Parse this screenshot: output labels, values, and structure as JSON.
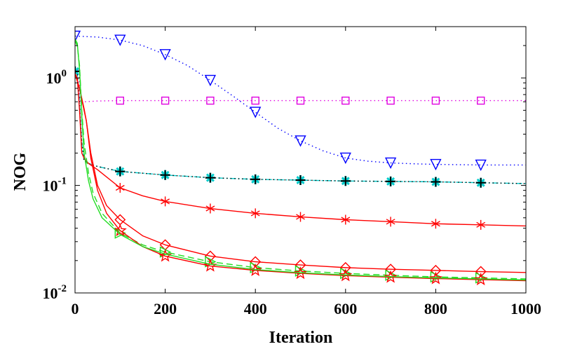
{
  "chart_data": {
    "type": "line",
    "title": "",
    "xlabel": "Iteration",
    "ylabel": "NOG",
    "xscale": "linear",
    "yscale": "log",
    "xlim": [
      0,
      1000
    ],
    "ylim": [
      0.01,
      3
    ],
    "grid": false,
    "legend": "none",
    "xticks": [
      0,
      200,
      400,
      600,
      800,
      1000
    ],
    "xtick_labels": [
      "0",
      "200",
      "400",
      "600",
      "800",
      "1000"
    ],
    "yticks": [
      0.01,
      0.1,
      1
    ],
    "ytick_labels": [
      {
        "base": "10",
        "exp": "-2"
      },
      {
        "base": "10",
        "exp": "-1"
      },
      {
        "base": "10",
        "exp": "0"
      }
    ],
    "series": [
      {
        "name": "blue-triangle-down",
        "color": "#0000ff",
        "dash": "dotted",
        "marker": "triangle-down",
        "x": [
          0,
          50,
          100,
          150,
          200,
          250,
          300,
          350,
          400,
          450,
          500,
          550,
          600,
          650,
          700,
          750,
          800,
          850,
          900,
          950,
          1000
        ],
        "y": [
          2.45,
          2.4,
          2.25,
          2.0,
          1.65,
          1.3,
          0.95,
          0.68,
          0.48,
          0.34,
          0.26,
          0.21,
          0.18,
          0.168,
          0.162,
          0.159,
          0.157,
          0.156,
          0.155,
          0.155,
          0.155
        ],
        "marker_x": [
          0,
          100,
          200,
          300,
          400,
          500,
          600,
          700,
          800,
          900
        ]
      },
      {
        "name": "magenta-square",
        "color": "#e000e0",
        "dash": "dotted",
        "marker": "square",
        "x": [
          0,
          8,
          12,
          20,
          50,
          100,
          200,
          300,
          400,
          500,
          600,
          700,
          800,
          900,
          1000
        ],
        "y": [
          1.2,
          1.2,
          0.58,
          0.6,
          0.61,
          0.615,
          0.615,
          0.615,
          0.615,
          0.615,
          0.615,
          0.615,
          0.615,
          0.615,
          0.615
        ],
        "marker_x": [
          100,
          200,
          300,
          400,
          500,
          600,
          700,
          800,
          900
        ]
      },
      {
        "name": "cyan-asterisk",
        "color": "#00cccc",
        "dash": "dashdot",
        "marker": "asterisk",
        "x": [
          0,
          5,
          10,
          15,
          20,
          30,
          50,
          100,
          200,
          300,
          400,
          500,
          600,
          700,
          800,
          900,
          1000
        ],
        "y": [
          1.15,
          1.1,
          0.6,
          0.25,
          0.17,
          0.16,
          0.15,
          0.135,
          0.125,
          0.118,
          0.114,
          0.112,
          0.11,
          0.109,
          0.108,
          0.106,
          0.104
        ],
        "marker_x": [
          0,
          100,
          200,
          300,
          400,
          500,
          600,
          700,
          800,
          900
        ]
      },
      {
        "name": "black-plus",
        "color": "#000000",
        "dash": "dotted",
        "marker": "plus",
        "x": [
          0,
          5,
          10,
          15,
          20,
          30,
          50,
          100,
          200,
          300,
          400,
          500,
          600,
          700,
          800,
          900,
          1000
        ],
        "y": [
          1.15,
          1.1,
          0.6,
          0.25,
          0.17,
          0.16,
          0.15,
          0.135,
          0.125,
          0.118,
          0.114,
          0.112,
          0.11,
          0.109,
          0.108,
          0.106,
          0.104
        ],
        "marker_x": [
          0,
          100,
          200,
          300,
          400,
          500,
          600,
          700,
          800,
          900
        ]
      },
      {
        "name": "red-star",
        "color": "#ff0000",
        "dash": "solid",
        "marker": "star",
        "x": [
          0,
          5,
          10,
          15,
          20,
          30,
          50,
          100,
          150,
          200,
          300,
          400,
          500,
          600,
          700,
          800,
          900,
          1000
        ],
        "y": [
          1.1,
          1.0,
          0.5,
          0.2,
          0.18,
          0.16,
          0.14,
          0.095,
          0.08,
          0.071,
          0.061,
          0.055,
          0.051,
          0.048,
          0.046,
          0.044,
          0.043,
          0.042
        ],
        "marker_x": [
          100,
          200,
          300,
          400,
          500,
          600,
          700,
          800,
          900
        ]
      },
      {
        "name": "red-diamond",
        "color": "#ff0000",
        "dash": "solid",
        "marker": "diamond",
        "x": [
          0,
          10,
          20,
          25,
          35,
          50,
          70,
          100,
          150,
          200,
          300,
          400,
          500,
          600,
          700,
          800,
          900,
          1000
        ],
        "y": [
          1.1,
          0.8,
          0.52,
          0.4,
          0.2,
          0.1,
          0.065,
          0.048,
          0.034,
          0.028,
          0.022,
          0.0195,
          0.0182,
          0.0172,
          0.0166,
          0.0162,
          0.0158,
          0.0155
        ],
        "marker_x": [
          100,
          200,
          300,
          400,
          500,
          600,
          700,
          800,
          900
        ]
      },
      {
        "name": "green-triangle-right",
        "color": "#22dd22",
        "dash": "dashed",
        "marker": "triangle-right",
        "x": [
          0,
          5,
          10,
          15,
          20,
          30,
          40,
          60,
          100,
          150,
          200,
          300,
          400,
          500,
          600,
          700,
          800,
          900,
          1000
        ],
        "y": [
          2.2,
          2.0,
          1.3,
          0.5,
          0.25,
          0.13,
          0.085,
          0.055,
          0.036,
          0.028,
          0.024,
          0.0195,
          0.0172,
          0.016,
          0.0152,
          0.0146,
          0.0141,
          0.0138,
          0.0135
        ],
        "marker_x": [
          100,
          200,
          300,
          400,
          500,
          600,
          700,
          800,
          900
        ]
      },
      {
        "name": "red-pentagram",
        "color": "#ff0000",
        "dash": "solid",
        "marker": "pentagram",
        "x": [
          0,
          10,
          20,
          25,
          35,
          50,
          70,
          100,
          150,
          200,
          300,
          400,
          500,
          600,
          700,
          800,
          900,
          1000
        ],
        "y": [
          1.1,
          0.8,
          0.5,
          0.4,
          0.18,
          0.09,
          0.055,
          0.038,
          0.027,
          0.022,
          0.0178,
          0.0162,
          0.0152,
          0.0145,
          0.014,
          0.0136,
          0.0133,
          0.013
        ],
        "marker_x": [
          100,
          200,
          300,
          400,
          500,
          600,
          700,
          800,
          900
        ]
      },
      {
        "name": "green-line",
        "color": "#22dd22",
        "dash": "solid",
        "marker": "none",
        "x": [
          0,
          5,
          10,
          15,
          20,
          30,
          40,
          60,
          100,
          150,
          200,
          300,
          400,
          500,
          600,
          700,
          800,
          900,
          1000
        ],
        "y": [
          2.3,
          2.1,
          1.2,
          0.45,
          0.2,
          0.11,
          0.075,
          0.05,
          0.035,
          0.027,
          0.023,
          0.0185,
          0.0165,
          0.0154,
          0.0147,
          0.0142,
          0.0138,
          0.0135,
          0.0132
        ],
        "marker_x": []
      }
    ]
  }
}
